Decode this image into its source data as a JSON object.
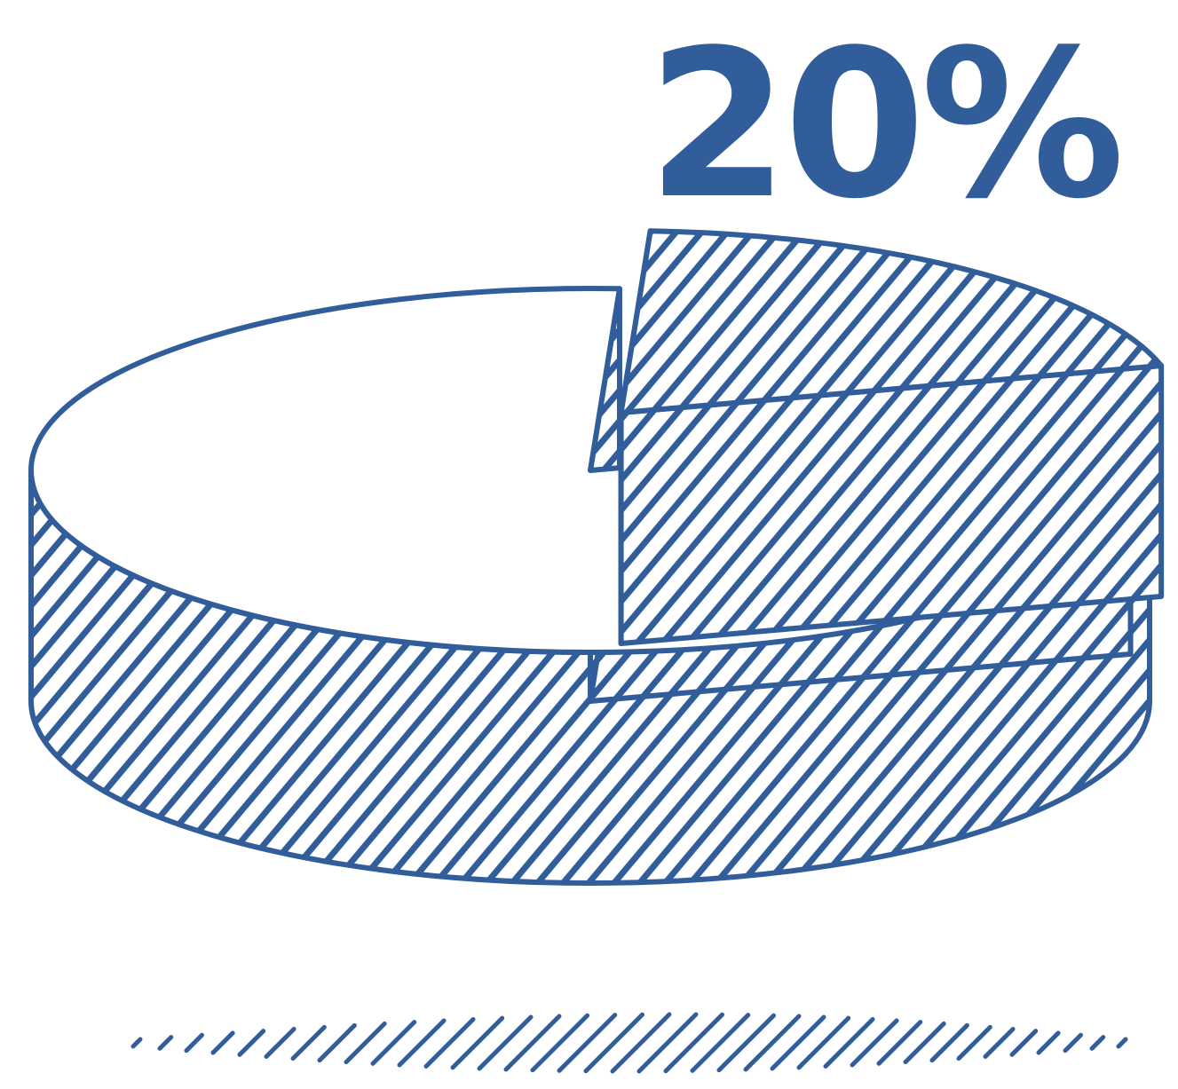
{
  "chart_data": {
    "type": "pie",
    "values": [
      80,
      20
    ],
    "value_labels": [
      null,
      "20%"
    ],
    "color": "#325d9b"
  }
}
